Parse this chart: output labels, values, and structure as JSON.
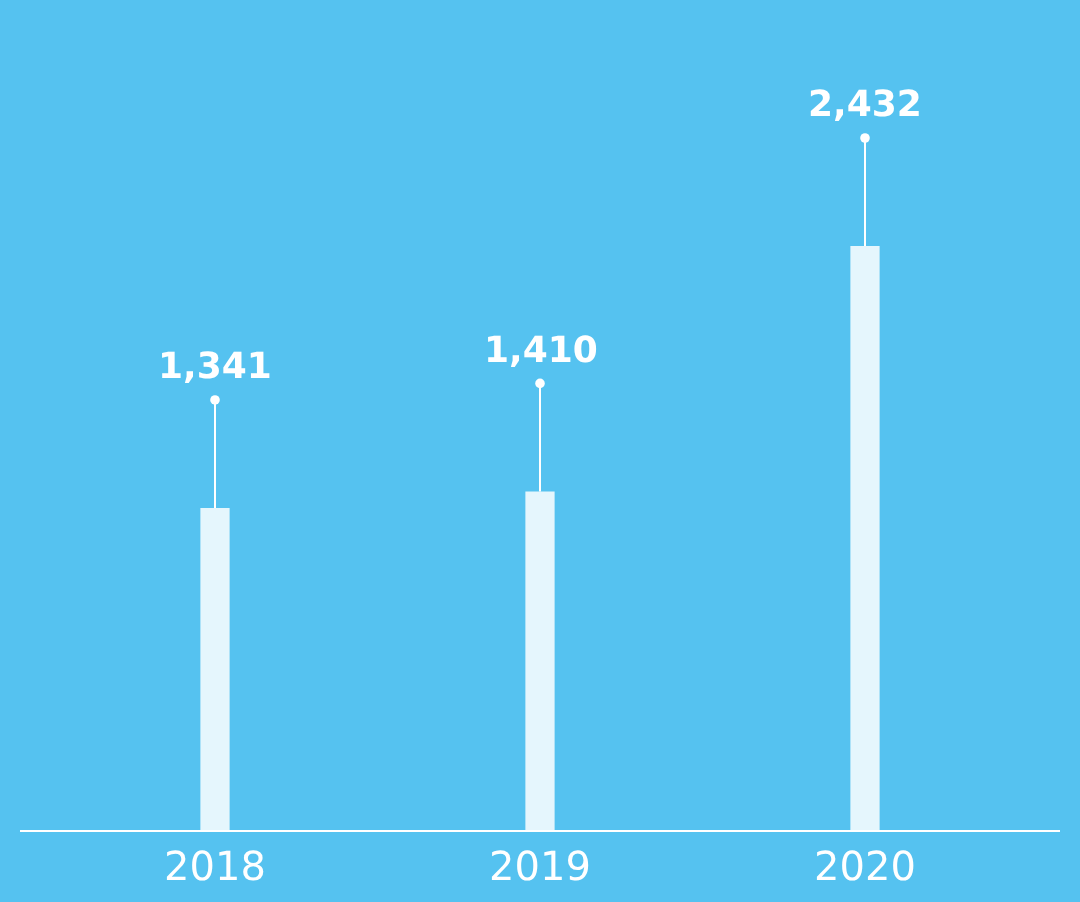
{
  "chart_data": {
    "type": "bar",
    "categories": [
      "2018",
      "2019",
      "2020"
    ],
    "values": [
      1341,
      1410,
      2432
    ],
    "color": "#ffffff",
    "value_labels": [
      "1,341",
      "1,410",
      "2,432"
    ],
    "grid": false,
    "legend": false
  }
}
